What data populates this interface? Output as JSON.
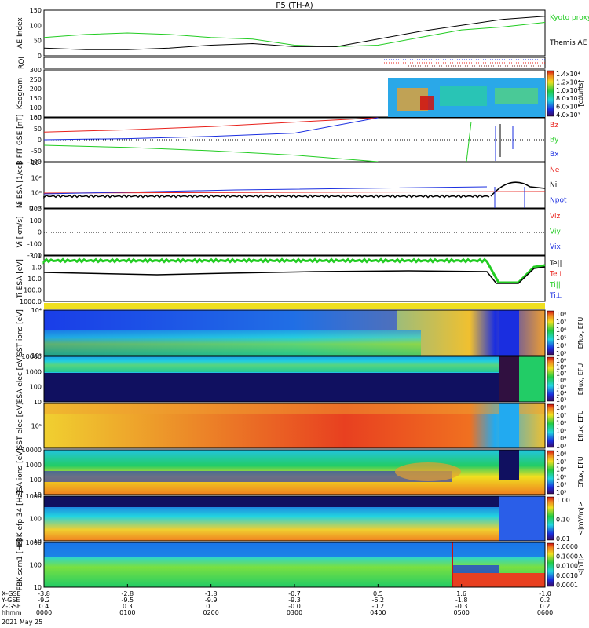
{
  "title": "P5 (TH-A)",
  "date_label": "2021 May 25",
  "colors": {
    "red": "#e8201a",
    "green": "#22cc22",
    "blue": "#1a2ee0",
    "black": "#000000",
    "spec_low": "#101060",
    "spec_mid": "#2ad0c8",
    "spec_hi": "#e63a1a"
  },
  "footer": {
    "rows": [
      {
        "label": "X-GSE",
        "values": [
          "-3.8",
          "-2.8",
          "-1.8",
          "-0.7",
          "0.5",
          "1.6",
          "-1.0"
        ]
      },
      {
        "label": "Y-GSE",
        "values": [
          "-9.2",
          "-9.5",
          "-9.9",
          "-9.3",
          "-6.2",
          "-1.8",
          "0.2"
        ]
      },
      {
        "label": "Z-GSE",
        "values": [
          "0.4",
          "0.3",
          "0.1",
          "-0.0",
          "-0.2",
          "-0.3",
          "0.2"
        ]
      },
      {
        "label": "hhmm",
        "values": [
          "0000",
          "0100",
          "0200",
          "0300",
          "0400",
          "0500",
          "0600"
        ]
      }
    ]
  },
  "chart_data": [
    {
      "type": "line",
      "panel": "ae",
      "ylabel": "AE Index",
      "ylim": [
        0,
        150
      ],
      "yticks": [
        "0",
        "50",
        "100",
        "150"
      ],
      "x": [
        "0000",
        "0030",
        "0100",
        "0130",
        "0200",
        "0230",
        "0300",
        "0330",
        "0400",
        "0430",
        "0500",
        "0530",
        "0600"
      ],
      "series": [
        {
          "name": "Kyoto proxy AE",
          "color": "green",
          "values": [
            60,
            70,
            75,
            70,
            60,
            55,
            35,
            30,
            35,
            60,
            85,
            95,
            110
          ]
        },
        {
          "name": "Themis AE",
          "color": "black",
          "values": [
            25,
            20,
            20,
            25,
            35,
            40,
            30,
            30,
            55,
            80,
            100,
            120,
            130
          ]
        }
      ]
    },
    {
      "type": "line",
      "panel": "roi",
      "ylabel": "ROI",
      "series": []
    },
    {
      "type": "heatmap",
      "panel": "keogram",
      "ylabel": "Keogram",
      "ylim": [
        50,
        300
      ],
      "yticks": [
        "50",
        "100",
        "150",
        "200",
        "250",
        "300"
      ],
      "colorbar": {
        "label": "[counts]",
        "ticks": [
          "4.0x10³",
          "6.0x10³",
          "8.0x10³",
          "1.0x10⁴",
          "1.2x10⁴",
          "1.4x10⁴"
        ]
      }
    },
    {
      "type": "line",
      "panel": "bfield",
      "ylabel": "B FIT GSE [nT]",
      "ylim": [
        -100,
        100
      ],
      "yticks": [
        "-100",
        "-50",
        "0",
        "50",
        "100"
      ],
      "x": [
        "0000",
        "0100",
        "0200",
        "0300",
        "0400",
        "0500",
        "0600"
      ],
      "series": [
        {
          "name": "Bz",
          "color": "red",
          "values": [
            35,
            45,
            60,
            80,
            100,
            100,
            100
          ]
        },
        {
          "name": "By",
          "color": "green",
          "values": [
            -25,
            -35,
            -50,
            -70,
            -100,
            -100,
            90
          ]
        },
        {
          "name": "Bx",
          "color": "blue",
          "values": [
            0,
            5,
            15,
            30,
            100,
            100,
            60
          ]
        }
      ]
    },
    {
      "type": "line",
      "panel": "density",
      "ylabel": "Ni ESA [1/cc]",
      "ylim": [
        "10⁻²",
        "10⁴"
      ],
      "yticks": [
        "10⁻²",
        "10⁰",
        "10²",
        "10⁴"
      ],
      "series": [
        {
          "name": "Ne",
          "color": "red"
        },
        {
          "name": "Ni",
          "color": "black"
        },
        {
          "name": "Npot",
          "color": "blue"
        }
      ]
    },
    {
      "type": "line",
      "panel": "velocity",
      "ylabel": "Vi [km/s]",
      "ylim": [
        -200,
        200
      ],
      "yticks": [
        "-200",
        "-100",
        "0",
        "100",
        "200"
      ],
      "series": [
        {
          "name": "Viz",
          "color": "red"
        },
        {
          "name": "Viy",
          "color": "green"
        },
        {
          "name": "Vix",
          "color": "blue"
        }
      ]
    },
    {
      "type": "line",
      "panel": "temp",
      "ylabel": "Ti ESA [eV]",
      "ylim": [
        0.1,
        1000
      ],
      "yticks": [
        "1000.0",
        "100.0",
        "10.0",
        "1.0",
        "0.1"
      ],
      "series": [
        {
          "name": "Te||",
          "color": "black"
        },
        {
          "name": "Te⊥",
          "color": "red"
        },
        {
          "name": "Ti||",
          "color": "green"
        },
        {
          "name": "Ti⊥",
          "color": "blue"
        }
      ]
    },
    {
      "type": "heatmap",
      "panel": "sst_ion",
      "ylabel": "SST ions [eV]",
      "yticks": [
        "10²",
        "10⁴"
      ],
      "colorbar": {
        "label": "Eflux, EFU",
        "ticks": [
          "10³",
          "10⁴",
          "10⁵",
          "10⁶",
          "10⁷",
          "10⁸"
        ]
      }
    },
    {
      "type": "heatmap",
      "panel": "esa_elec",
      "ylabel": "ESA elec [eV]",
      "yticks": [
        "10",
        "100",
        "1000",
        "10000"
      ],
      "colorbar": {
        "label": "Eflux, EFU",
        "ticks": [
          "10³",
          "10⁴",
          "10⁵",
          "10⁶",
          "10⁷",
          "10⁸",
          "10⁹"
        ]
      }
    },
    {
      "type": "heatmap",
      "panel": "sst_elec",
      "ylabel": "SST elec [eV]",
      "yticks": [
        "10⁵"
      ],
      "colorbar": {
        "label": "Eflux, EFU",
        "ticks": [
          "10³",
          "10⁴",
          "10⁵",
          "10⁶",
          "10⁷",
          "10⁸"
        ]
      }
    },
    {
      "type": "heatmap",
      "panel": "esa_ion",
      "ylabel": "ESA ions [eV]",
      "yticks": [
        "10",
        "100",
        "1000",
        "10000"
      ],
      "colorbar": {
        "label": "Eflux, EFU",
        "ticks": [
          "10³",
          "10⁴",
          "10⁵",
          "10⁶",
          "10⁷",
          "10⁸"
        ]
      }
    },
    {
      "type": "heatmap",
      "panel": "fbk_e",
      "ylabel": "FBK efp 34 [Hz]",
      "yticks": [
        "10",
        "100",
        "1000"
      ],
      "colorbar": {
        "label": "<|mV/m|>",
        "ticks": [
          "0.01",
          "0.10",
          "1.00"
        ]
      }
    },
    {
      "type": "heatmap",
      "panel": "fbk_b",
      "ylabel": "FBK scm1 [Hz]",
      "yticks": [
        "10",
        "100",
        "1000"
      ],
      "colorbar": {
        "label": "<|nT|>",
        "ticks": [
          "0.0001",
          "0.0010",
          "0.0100",
          "0.1000",
          "1.0000"
        ]
      }
    }
  ]
}
